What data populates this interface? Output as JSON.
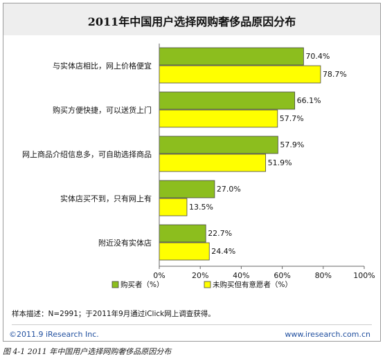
{
  "caption": "图 4-1 2011 年中国用户选择网购奢侈品原因分布",
  "footer": {
    "sample_note": "样本描述：N=2991；于2011年9月通过iClick网上调查获得。",
    "copyright": "©2011.9 iResearch Inc.",
    "website": "www.iresearch.com.cn"
  },
  "colors": {
    "bought": "#8cbe1e",
    "not_bought": "#ffff00",
    "bar_border": "#444444"
  },
  "chart_data": {
    "type": "bar",
    "orientation": "horizontal",
    "title": "2011年中国用户选择网购奢侈品原因分布",
    "categories": [
      "与实体店相比，网上价格便宜",
      "购买方便快捷，可以送货上门",
      "网上商品介绍信息多，可自助选择商品",
      "实体店买不到，只有网上有",
      "附近没有实体店"
    ],
    "series": [
      {
        "name": "购买者（%）",
        "values": [
          70.4,
          66.1,
          57.9,
          27.0,
          22.7
        ]
      },
      {
        "name": "未购买但有意愿者（%）",
        "values": [
          78.7,
          57.7,
          51.9,
          13.5,
          24.4
        ]
      }
    ],
    "value_labels": [
      [
        "70.4%",
        "66.1%",
        "57.9%",
        "27.0%",
        "22.7%"
      ],
      [
        "78.7%",
        "57.7%",
        "51.9%",
        "13.5%",
        "24.4%"
      ]
    ],
    "xlim": [
      0,
      100
    ],
    "xticks": [
      "0%",
      "20%",
      "40%",
      "60%",
      "80%",
      "100%"
    ],
    "grid": false,
    "legend_position": "bottom-left"
  }
}
